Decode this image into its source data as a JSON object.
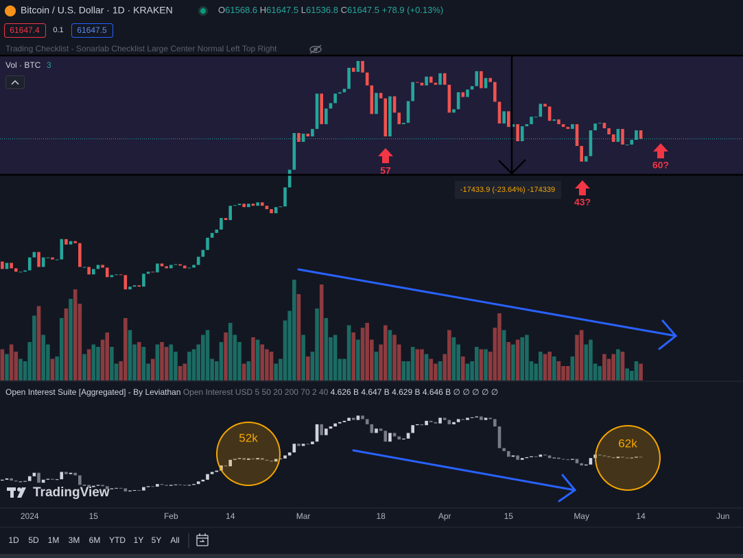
{
  "header": {
    "symbol": "Bitcoin / U.S. Dollar · 1D · KRAKEN",
    "o_label": "O",
    "o": "61568.6",
    "h_label": "H",
    "h": "61647.5",
    "l_label": "L",
    "l": "61536.8",
    "c_label": "C",
    "c": "61647.5",
    "change": "+78.9 (+0.13%)",
    "sell": "61647.4",
    "spread": "0.1",
    "buy": "61647.5"
  },
  "checklist": "Trading Checklist - Sonarlab Checklist Large Center Normal Left Top Right",
  "volume_legend": {
    "name": "Vol · BTC",
    "value": "3"
  },
  "oi_legend": {
    "name": "Open Interest Suite [Aggregated] - By Leviathan",
    "params": "Open Interest USD 5 50 20 200 70 2 40",
    "values": [
      "4.626 B",
      "4.647 B",
      "4.629 B",
      "4.646 B"
    ],
    "plots": [
      "∅",
      "∅",
      "∅",
      "∅",
      "∅"
    ]
  },
  "annotations": {
    "measure": "-17433.9 (-23.64%) -174339",
    "arrows": [
      "57",
      "43?",
      "60?"
    ],
    "circles": [
      "52k",
      "62k"
    ]
  },
  "logo": "TradingView",
  "toolbar": [
    "1D",
    "5D",
    "1M",
    "3M",
    "6M",
    "YTD",
    "1Y",
    "5Y",
    "All"
  ],
  "chart_data": [
    {
      "type": "candlestick",
      "x": [
        -7,
        -6,
        -5,
        -4,
        -3,
        -2,
        -1,
        0,
        1,
        2,
        3,
        4,
        5,
        6,
        7,
        8,
        9,
        10,
        11,
        12,
        13,
        14,
        15,
        16,
        17,
        18,
        19,
        20,
        21,
        22,
        23,
        24,
        25,
        26,
        27,
        28,
        29,
        30,
        31,
        32,
        33,
        34,
        35,
        36,
        37,
        38,
        39,
        40,
        41,
        42,
        43,
        44,
        45,
        46,
        47,
        48,
        49,
        50,
        51,
        52,
        53,
        54,
        55,
        56,
        57,
        58,
        59,
        60,
        61,
        62,
        63,
        64,
        65,
        66,
        67,
        68,
        69,
        70,
        71,
        72,
        73,
        74,
        75,
        76,
        77,
        78,
        79,
        80,
        81,
        82,
        83,
        84,
        85,
        86,
        87,
        88,
        89,
        90,
        91,
        92,
        93,
        94,
        95,
        96,
        97,
        98,
        99,
        100,
        101,
        102,
        103,
        104,
        105,
        106,
        107,
        108,
        109,
        110,
        111,
        112,
        113,
        114,
        115,
        116,
        117,
        118,
        119,
        120,
        121,
        122,
        123,
        124,
        125,
        126,
        127,
        128,
        129,
        130,
        131,
        132,
        133,
        134
      ],
      "closes": [
        43600,
        42500,
        43400,
        42600,
        42100,
        42100,
        42300,
        44200,
        45000,
        42800,
        44200,
        44200,
        43900,
        43900,
        46900,
        46100,
        46600,
        46300,
        42800,
        42800,
        41700,
        42500,
        43100,
        42700,
        41300,
        41600,
        41700,
        41600,
        39500,
        39900,
        40100,
        39900,
        41800,
        42100,
        42000,
        43300,
        42900,
        42600,
        43100,
        43200,
        43000,
        42600,
        42700,
        43100,
        44300,
        45300,
        47100,
        47800,
        48300,
        50000,
        49700,
        51800,
        51900,
        52100,
        51600,
        52100,
        51800,
        52300,
        51800,
        51300,
        50700,
        51600,
        51700,
        54500,
        57100,
        62500,
        61200,
        62400,
        62000,
        63100,
        68300,
        63800,
        66100,
        66900,
        68300,
        68500,
        69000,
        72100,
        71500,
        73100,
        71400,
        69500,
        65300,
        68400,
        67600,
        62000,
        67900,
        65500,
        63800,
        64000,
        67200,
        70000,
        69900,
        69500,
        70800,
        69900,
        69600,
        71300,
        69600,
        65500,
        66000,
        68500,
        67800,
        68900,
        69400,
        71600,
        69100,
        70600,
        70000,
        67100,
        63900,
        65700,
        63400,
        63800,
        61300,
        63500,
        63800,
        64900,
        64900,
        66800,
        66400,
        64300,
        64500,
        63800,
        63400,
        63100,
        63800,
        60600,
        58300,
        59100,
        62900,
        63900,
        64000,
        63200,
        62300,
        61200,
        63100,
        60800,
        60800,
        61500,
        62900,
        61647.5
      ],
      "up_color": "#26a69a",
      "down_color": "#ef5350",
      "ylim": [
        37700,
        73800
      ],
      "xlim": [
        -6.5,
        156.4
      ],
      "xticks": [
        {
          "value": 0,
          "label": "2024"
        },
        {
          "value": 14,
          "label": "15"
        },
        {
          "value": 31,
          "label": "Feb"
        },
        {
          "value": 44,
          "label": "14"
        },
        {
          "value": 60,
          "label": "Mar"
        },
        {
          "value": 77,
          "label": "18"
        },
        {
          "value": 91,
          "label": "Apr"
        },
        {
          "value": 105,
          "label": "15"
        },
        {
          "value": 121,
          "label": "May"
        },
        {
          "value": 134,
          "label": "14"
        },
        {
          "value": 152,
          "label": "Jun"
        }
      ]
    },
    {
      "type": "bar",
      "values": [
        1400,
        1300,
        1100,
        1500,
        1200,
        900,
        800,
        1600,
        2700,
        3100,
        1900,
        1500,
        900,
        1000,
        2600,
        3000,
        3400,
        3800,
        3200,
        1100,
        1300,
        1500,
        1400,
        1700,
        2000,
        1400,
        700,
        800,
        2600,
        2100,
        1500,
        1600,
        1400,
        700,
        900,
        1500,
        1600,
        1400,
        1500,
        1200,
        600,
        700,
        1200,
        1300,
        1500,
        1900,
        2100,
        900,
        800,
        1600,
        2000,
        2400,
        1900,
        1600,
        700,
        800,
        1800,
        1700,
        1500,
        1300,
        1200,
        700,
        900,
        2500,
        2900,
        4200,
        3600,
        1900,
        1000,
        1200,
        3000,
        4000,
        2600,
        1800,
        1900,
        900,
        900,
        2300,
        2000,
        1700,
        2200,
        2400,
        1700,
        1200,
        1500,
        2300,
        2100,
        1900,
        1500,
        800,
        800,
        1400,
        1300,
        1300,
        1100,
        900,
        700,
        800,
        1100,
        2100,
        1800,
        1500,
        1000,
        700,
        800,
        1400,
        1300,
        1300,
        1200,
        2200,
        2800,
        2100,
        1600,
        1500,
        1700,
        1800,
        1900,
        800,
        700,
        1200,
        1100,
        1200,
        1000,
        800,
        600,
        600,
        1000,
        1900,
        2100,
        1500,
        1700,
        700,
        600,
        1100,
        900,
        1100,
        1300,
        1200,
        500,
        400,
        800,
        700
      ],
      "up_color": "#1c6b63",
      "down_color": "#8c3b3f",
      "ylim": [
        0,
        5000
      ]
    },
    {
      "type": "candlestick",
      "closes": [
        4.1,
        4.12,
        4.15,
        4.1,
        4.08,
        4.08,
        4.09,
        4.2,
        4.28,
        4.05,
        4.12,
        4.14,
        4.12,
        4.13,
        4.3,
        4.25,
        4.28,
        4.22,
        4.0,
        4.0,
        3.95,
        3.98,
        4.0,
        3.97,
        3.9,
        3.92,
        3.93,
        3.92,
        3.85,
        3.87,
        3.88,
        3.87,
        3.95,
        3.97,
        3.96,
        4.02,
        4.0,
        3.98,
        4.0,
        4.01,
        4.0,
        3.99,
        4.0,
        4.02,
        4.08,
        4.12,
        4.25,
        4.3,
        4.33,
        4.45,
        4.43,
        4.58,
        4.6,
        4.62,
        4.58,
        4.61,
        4.59,
        4.62,
        4.58,
        4.56,
        4.54,
        4.6,
        4.61,
        4.68,
        4.75,
        4.95,
        4.9,
        4.95,
        4.94,
        5.0,
        5.4,
        5.15,
        5.3,
        5.35,
        5.42,
        5.45,
        5.48,
        5.55,
        5.5,
        5.6,
        5.52,
        5.4,
        5.2,
        5.3,
        5.25,
        5.0,
        5.2,
        5.12,
        5.05,
        5.07,
        5.2,
        5.38,
        5.4,
        5.38,
        5.48,
        5.45,
        5.42,
        5.55,
        5.5,
        5.4,
        5.45,
        5.52,
        5.5,
        5.55,
        5.56,
        5.58,
        5.5,
        5.55,
        5.52,
        5.35,
        4.85,
        4.78,
        4.65,
        4.68,
        4.58,
        4.62,
        4.64,
        4.66,
        4.65,
        4.7,
        4.68,
        4.62,
        4.63,
        4.6,
        4.59,
        4.58,
        4.6,
        4.5,
        4.45,
        4.47,
        4.62,
        4.7,
        4.68,
        4.66,
        4.64,
        4.62,
        4.65,
        4.63,
        4.62,
        4.63,
        4.65,
        4.646
      ],
      "up_color": "#d1d4dc",
      "down_color": "#787b86",
      "ylim": [
        3.8,
        5.7
      ]
    }
  ]
}
